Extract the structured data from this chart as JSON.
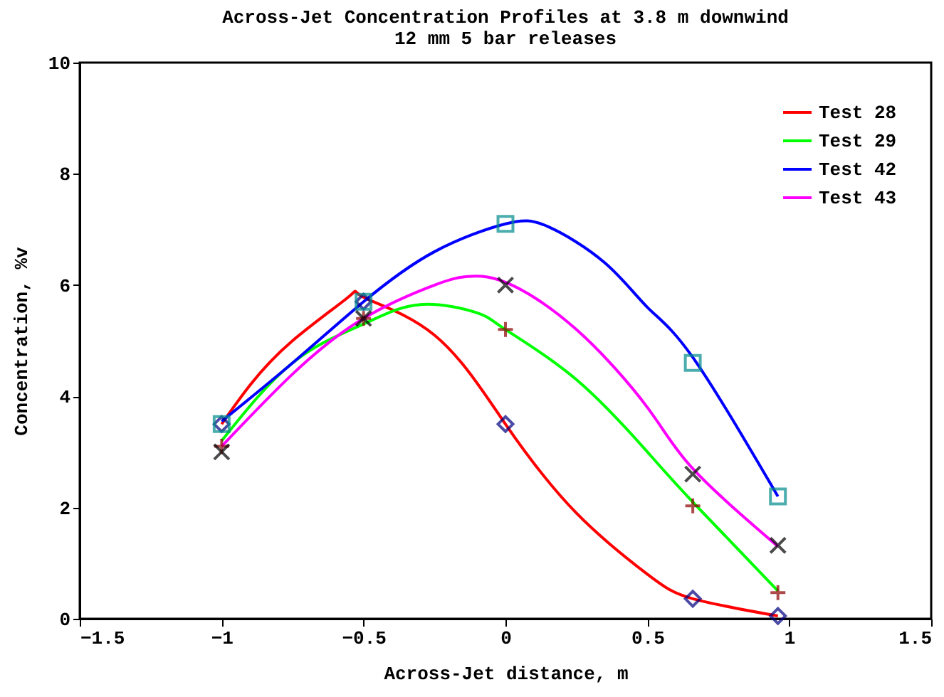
{
  "chart_data": {
    "type": "line",
    "title": "Across-Jet Concentration Profiles at 3.8 m downwind",
    "subtitle": "12 mm 5 bar releases",
    "xlabel": "Across-Jet distance, m",
    "ylabel": "Concentration, %v",
    "xlim": [
      -1.5,
      1.5
    ],
    "xticks": [
      -1.5,
      -1,
      -0.5,
      0,
      0.5,
      1,
      1.5
    ],
    "ylim": [
      0,
      10
    ],
    "yticks": [
      0,
      2,
      4,
      6,
      8,
      10
    ],
    "grid": false,
    "legend": "top right",
    "line_style": "solid",
    "series": [
      {
        "name": "Test 28",
        "color": "#ff0000",
        "x": [
          -1,
          -0.9,
          -0.75,
          -0.55,
          -0.5,
          -0.25,
          0,
          0.25,
          0.5,
          0.66,
          0.96
        ],
        "values": [
          3.5,
          4.2,
          5.0,
          5.8,
          5.78,
          5.1,
          3.5,
          1.9,
          0.8,
          0.36,
          0.05
        ]
      },
      {
        "name": "Test 29",
        "color": "#00ff00",
        "x": [
          -1,
          -0.75,
          -0.5,
          -0.3,
          -0.1,
          0,
          0.25,
          0.5,
          0.66,
          0.96
        ],
        "values": [
          3.2,
          4.6,
          5.3,
          5.65,
          5.5,
          5.2,
          4.3,
          3.0,
          2.1,
          0.5
        ]
      },
      {
        "name": "Test 42",
        "color": "#0000ff",
        "x": [
          -1,
          -0.75,
          -0.5,
          -0.25,
          0,
          0.15,
          0.35,
          0.5,
          0.66,
          0.96
        ],
        "values": [
          3.55,
          4.6,
          5.7,
          6.6,
          7.1,
          7.05,
          6.4,
          5.6,
          4.7,
          2.2
        ]
      },
      {
        "name": "Test 43",
        "color": "#ff00ff",
        "x": [
          -1,
          -0.75,
          -0.5,
          -0.25,
          -0.14,
          0,
          0.25,
          0.5,
          0.66,
          0.96
        ],
        "values": [
          3.1,
          4.4,
          5.4,
          6.0,
          6.15,
          6.05,
          5.2,
          3.8,
          2.7,
          1.3
        ]
      },
      {
        "type": "scatter",
        "marker": "diamond",
        "color": "#000080",
        "x": [
          -1,
          -0.5,
          0,
          0.66,
          0.96
        ],
        "values": [
          3.5,
          5.7,
          3.5,
          0.36,
          0.05
        ]
      },
      {
        "type": "scatter",
        "marker": "cross",
        "color": "#8b0000",
        "x": [
          -1,
          -0.5,
          0,
          0.66,
          0.96
        ],
        "values": [
          3.1,
          5.4,
          5.2,
          2.03,
          0.47
        ]
      },
      {
        "type": "scatter",
        "marker": "square",
        "color": "#008b8b",
        "x": [
          -1,
          -0.5,
          0,
          0.66,
          0.96
        ],
        "values": [
          3.5,
          5.7,
          7.1,
          4.6,
          2.2
        ]
      },
      {
        "type": "scatter",
        "marker": "x",
        "color": "#000000",
        "x": [
          -1,
          -0.5,
          0,
          0.66,
          0.96
        ],
        "values": [
          3.0,
          5.4,
          6.0,
          2.6,
          1.32
        ]
      }
    ]
  }
}
